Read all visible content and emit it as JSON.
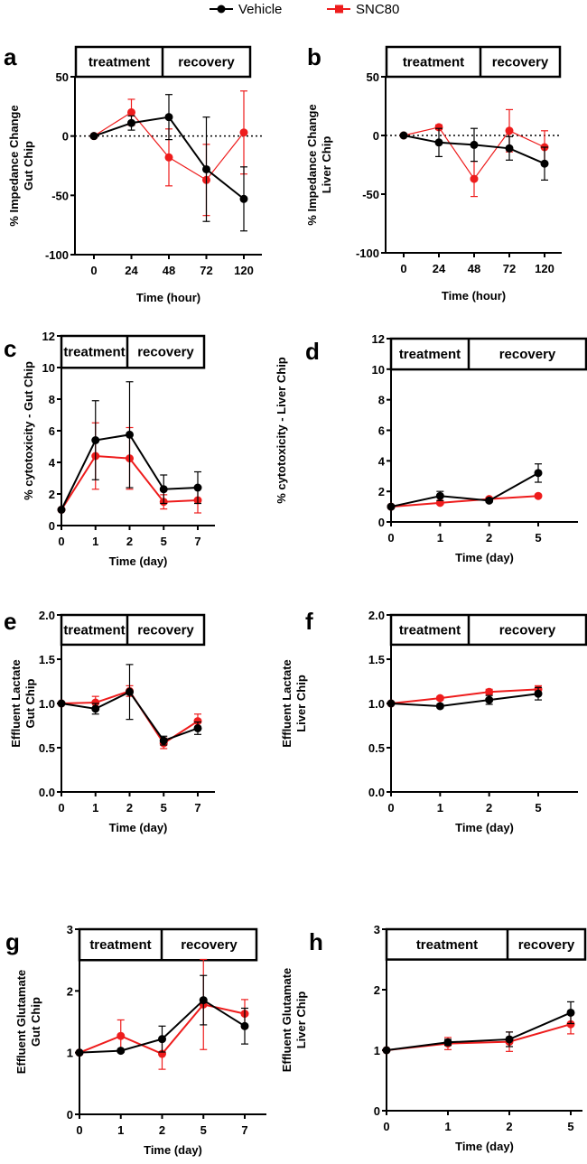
{
  "legend": [
    {
      "name": "Vehicle",
      "color": "#000000",
      "marker": "circle"
    },
    {
      "name": "SNC80",
      "color": "#ee1c1c",
      "marker": "square"
    }
  ],
  "chart_data": [
    {
      "panel": "a",
      "type": "line",
      "xlabel": "Time (hour)",
      "ylabel": [
        "% Impedance Change",
        "Gut Chip"
      ],
      "categories": [
        "0",
        "24",
        "48",
        "72",
        "120"
      ],
      "ylim": [
        -100,
        50
      ],
      "yticks": [
        "50",
        "0",
        "-50",
        "-100"
      ],
      "ytick_values": [
        50,
        0,
        -50,
        -100
      ],
      "reference_line": 0,
      "phase_labels": [
        "treatment",
        "recovery"
      ],
      "series": [
        {
          "name": "Vehicle",
          "values": [
            0,
            11,
            16,
            -28,
            -53
          ],
          "errors": [
            0,
            6,
            19,
            44,
            27
          ]
        },
        {
          "name": "SNC80",
          "values": [
            0,
            20,
            -18,
            -37,
            3
          ],
          "errors": [
            0,
            11,
            24,
            30,
            35
          ]
        }
      ]
    },
    {
      "panel": "b",
      "type": "line",
      "xlabel": "Time (hour)",
      "ylabel": [
        "% Impedance Change",
        "Liver Chip"
      ],
      "categories": [
        "0",
        "24",
        "48",
        "72",
        "120"
      ],
      "ylim": [
        -100,
        50
      ],
      "yticks": [
        "50",
        "0",
        "-50",
        "-100"
      ],
      "ytick_values": [
        50,
        0,
        -50,
        -100
      ],
      "reference_line": 0,
      "phase_labels": [
        "treatment",
        "recovery"
      ],
      "series": [
        {
          "name": "Vehicle",
          "values": [
            0,
            -6,
            -8,
            -11,
            -24
          ],
          "errors": [
            0,
            12,
            14,
            10,
            14
          ]
        },
        {
          "name": "SNC80",
          "values": [
            0,
            7,
            -37,
            4,
            -10
          ],
          "errors": [
            0,
            2,
            15,
            18,
            14
          ]
        }
      ]
    },
    {
      "panel": "c",
      "type": "line",
      "xlabel": "Time (day)",
      "ylabel": [
        "% cytotoxicity - Gut Chip"
      ],
      "categories": [
        "0",
        "1",
        "2",
        "5",
        "7"
      ],
      "ylim": [
        0,
        12
      ],
      "yticks": [
        "0",
        "2",
        "4",
        "6",
        "8",
        "10",
        "12"
      ],
      "ytick_values": [
        0,
        2,
        4,
        6,
        8,
        10,
        12
      ],
      "phase_labels": [
        "treatment",
        "recovery"
      ],
      "series": [
        {
          "name": "Vehicle",
          "values": [
            1,
            5.4,
            5.75,
            2.3,
            2.4
          ],
          "errors": [
            0,
            2.5,
            3.35,
            0.9,
            1.0
          ]
        },
        {
          "name": "SNC80",
          "values": [
            1,
            4.4,
            4.25,
            1.5,
            1.6
          ],
          "errors": [
            0,
            2.1,
            1.95,
            0.45,
            0.8
          ]
        }
      ]
    },
    {
      "panel": "d",
      "type": "line",
      "xlabel": "Time (day)",
      "ylabel": [
        "% cytotoxicity - Liver Chip"
      ],
      "categories": [
        "0",
        "1",
        "2",
        "5"
      ],
      "ylim": [
        0,
        12
      ],
      "yticks": [
        "0",
        "2",
        "4",
        "6",
        "8",
        "10",
        "12"
      ],
      "ytick_values": [
        0,
        2,
        4,
        6,
        8,
        10,
        12
      ],
      "phase_labels": [
        "treatment",
        "recovery"
      ],
      "series": [
        {
          "name": "Vehicle",
          "values": [
            1,
            1.7,
            1.4,
            3.2
          ],
          "errors": [
            0,
            0.3,
            0.1,
            0.6
          ]
        },
        {
          "name": "SNC80",
          "values": [
            1,
            1.25,
            1.5,
            1.7
          ],
          "errors": [
            0,
            0.1,
            0.1,
            0.1
          ]
        }
      ]
    },
    {
      "panel": "e",
      "type": "line",
      "xlabel": "Time (day)",
      "ylabel": [
        "Effluent Lactate",
        "Gut Chip"
      ],
      "categories": [
        "0",
        "1",
        "2",
        "5",
        "7"
      ],
      "ylim": [
        0,
        2
      ],
      "yticks": [
        "0.0",
        "0.5",
        "1.0",
        "1.5",
        "2.0"
      ],
      "ytick_values": [
        0,
        0.5,
        1,
        1.5,
        2
      ],
      "phase_labels": [
        "treatment",
        "recovery"
      ],
      "series": [
        {
          "name": "Vehicle",
          "values": [
            1,
            0.94,
            1.13,
            0.58,
            0.72
          ],
          "errors": [
            0,
            0.06,
            0.31,
            0.05,
            0.07
          ]
        },
        {
          "name": "SNC80",
          "values": [
            1,
            1.01,
            1.14,
            0.55,
            0.8
          ],
          "errors": [
            0,
            0.07,
            0.06,
            0.06,
            0.08
          ]
        }
      ]
    },
    {
      "panel": "f",
      "type": "line",
      "xlabel": "Time (day)",
      "ylabel": [
        "Effluent Lactate",
        "Liver Chip"
      ],
      "categories": [
        "0",
        "1",
        "2",
        "5"
      ],
      "ylim": [
        0,
        2
      ],
      "yticks": [
        "0.0",
        "0.5",
        "1.0",
        "1.5",
        "2.0"
      ],
      "ytick_values": [
        0,
        0.5,
        1,
        1.5,
        2
      ],
      "phase_labels": [
        "treatment",
        "recovery"
      ],
      "series": [
        {
          "name": "Vehicle",
          "values": [
            1,
            0.97,
            1.04,
            1.11
          ],
          "errors": [
            0,
            0.02,
            0.05,
            0.07
          ]
        },
        {
          "name": "SNC80",
          "values": [
            1,
            1.06,
            1.13,
            1.16
          ],
          "errors": [
            0,
            0.02,
            0.03,
            0.04
          ]
        }
      ]
    },
    {
      "panel": "g",
      "type": "line",
      "xlabel": "Time (day)",
      "ylabel": [
        "Effluent Glutamate",
        "Gut Chip"
      ],
      "categories": [
        "0",
        "1",
        "2",
        "5",
        "7"
      ],
      "ylim": [
        0,
        3
      ],
      "yticks": [
        "0",
        "1",
        "2",
        "3"
      ],
      "ytick_values": [
        0,
        1,
        2,
        3
      ],
      "phase_labels": [
        "treatment",
        "recovery"
      ],
      "series": [
        {
          "name": "Vehicle",
          "values": [
            1,
            1.03,
            1.22,
            1.85,
            1.43
          ],
          "errors": [
            0,
            0.02,
            0.21,
            0.4,
            0.29
          ]
        },
        {
          "name": "SNC80",
          "values": [
            1,
            1.27,
            0.98,
            1.78,
            1.63
          ],
          "errors": [
            0,
            0.26,
            0.25,
            0.73,
            0.23
          ]
        }
      ]
    },
    {
      "panel": "h",
      "type": "line",
      "xlabel": "Time (day)",
      "ylabel": [
        "Effluent Glutamate",
        "Liver Chip"
      ],
      "categories": [
        "0",
        "1",
        "2",
        "5"
      ],
      "ylim": [
        0,
        3
      ],
      "yticks": [
        "0",
        "1",
        "2",
        "3"
      ],
      "ytick_values": [
        0,
        1,
        2,
        3
      ],
      "phase_labels": [
        "treatment",
        "recovery"
      ],
      "series": [
        {
          "name": "Vehicle",
          "values": [
            1,
            1.13,
            1.18,
            1.62
          ],
          "errors": [
            0,
            0.05,
            0.12,
            0.18
          ]
        },
        {
          "name": "SNC80",
          "values": [
            1,
            1.11,
            1.14,
            1.43
          ],
          "errors": [
            0,
            0.1,
            0.16,
            0.16
          ]
        }
      ]
    }
  ]
}
